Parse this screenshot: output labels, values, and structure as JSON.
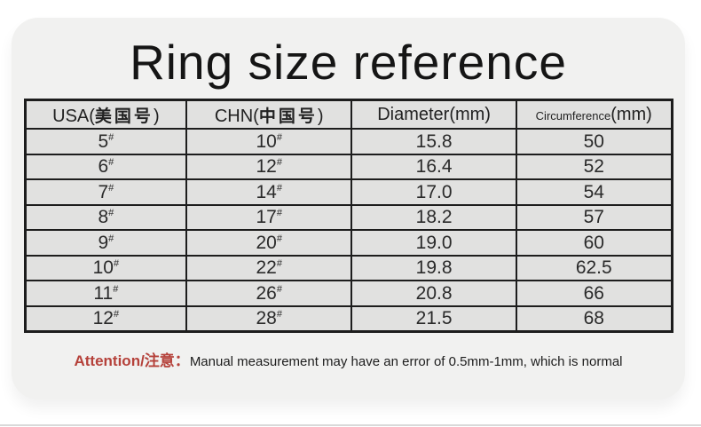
{
  "title": "Ring size reference",
  "colors": {
    "card_background": "#f1f1f0",
    "table_cell_background": "#e1e1e0",
    "table_border": "#1d1d1d",
    "attention_red": "#b5413a"
  },
  "table": {
    "size_suffix": "#",
    "headers": {
      "usa": {
        "prefix": "USA(",
        "cjk": "美国号",
        "suffix": ")"
      },
      "chn": {
        "prefix": "CHN(",
        "cjk": "中国号",
        "suffix": ")"
      },
      "diameter": "Diameter(mm)",
      "circumference": {
        "word": "Circumference",
        "unit": "(mm)"
      }
    },
    "rows": [
      {
        "usa": "5",
        "chn": "10",
        "diameter": "15.8",
        "circumference": "50"
      },
      {
        "usa": "6",
        "chn": "12",
        "diameter": "16.4",
        "circumference": "52"
      },
      {
        "usa": "7",
        "chn": "14",
        "diameter": "17.0",
        "circumference": "54"
      },
      {
        "usa": "8",
        "chn": "17",
        "diameter": "18.2",
        "circumference": "57"
      },
      {
        "usa": "9",
        "chn": "20",
        "diameter": "19.0",
        "circumference": "60"
      },
      {
        "usa": "10",
        "chn": "22",
        "diameter": "19.8",
        "circumference": "62.5"
      },
      {
        "usa": "11",
        "chn": "26",
        "diameter": "20.8",
        "circumference": "66"
      },
      {
        "usa": "12",
        "chn": "28",
        "diameter": "21.5",
        "circumference": "68"
      }
    ]
  },
  "note": {
    "label": "Attention/注意：",
    "text": "Manual measurement may have an error of 0.5mm-1mm, which is normal"
  }
}
